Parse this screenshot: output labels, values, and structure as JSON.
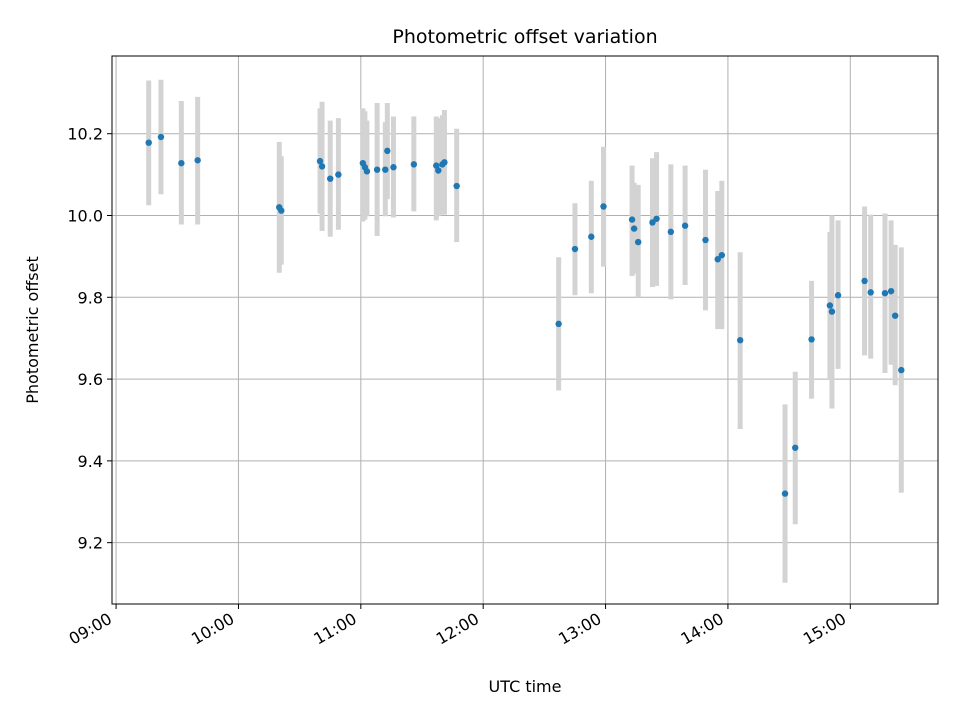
{
  "chart_data": {
    "type": "scatter",
    "title": "Photometric offset variation",
    "xlabel": "UTC time",
    "ylabel": "Photometric offset",
    "xlim": [
      "08:58",
      "15:43"
    ],
    "ylim": [
      9.05,
      10.39
    ],
    "grid": true,
    "legend": "none",
    "x_ticks": [
      "09:00",
      "10:00",
      "11:00",
      "12:00",
      "13:00",
      "14:00",
      "15:00"
    ],
    "y_ticks": [
      "9.2",
      "9.4",
      "9.6",
      "9.8",
      "10.0",
      "10.2"
    ],
    "marker_color": "#1f77b4",
    "errorbar_color": "#d3d3d3",
    "points": [
      {
        "t": "09:16",
        "y": 10.178,
        "lo": 10.025,
        "hi": 10.33
      },
      {
        "t": "09:22",
        "y": 10.192,
        "lo": 10.052,
        "hi": 10.332
      },
      {
        "t": "09:32",
        "y": 10.128,
        "lo": 9.978,
        "hi": 10.28
      },
      {
        "t": "09:40",
        "y": 10.135,
        "lo": 9.978,
        "hi": 10.29
      },
      {
        "t": "10:20",
        "y": 10.02,
        "lo": 9.86,
        "hi": 10.18
      },
      {
        "t": "10:21",
        "y": 10.012,
        "lo": 9.88,
        "hi": 10.145
      },
      {
        "t": "10:40",
        "y": 10.133,
        "lo": 10.005,
        "hi": 10.262
      },
      {
        "t": "10:41",
        "y": 10.12,
        "lo": 9.962,
        "hi": 10.278
      },
      {
        "t": "10:45",
        "y": 10.09,
        "lo": 9.948,
        "hi": 10.232
      },
      {
        "t": "10:49",
        "y": 10.1,
        "lo": 9.965,
        "hi": 10.238
      },
      {
        "t": "11:01",
        "y": 10.128,
        "lo": 9.985,
        "hi": 10.262
      },
      {
        "t": "11:02",
        "y": 10.118,
        "lo": 9.99,
        "hi": 10.255
      },
      {
        "t": "11:03",
        "y": 10.108,
        "lo": 9.998,
        "hi": 10.232
      },
      {
        "t": "11:08",
        "y": 10.112,
        "lo": 9.95,
        "hi": 10.275
      },
      {
        "t": "11:12",
        "y": 10.112,
        "lo": 9.998,
        "hi": 10.228
      },
      {
        "t": "11:13",
        "y": 10.158,
        "lo": 10.04,
        "hi": 10.275
      },
      {
        "t": "11:16",
        "y": 10.118,
        "lo": 9.995,
        "hi": 10.242
      },
      {
        "t": "11:26",
        "y": 10.125,
        "lo": 10.01,
        "hi": 10.242
      },
      {
        "t": "11:37",
        "y": 10.122,
        "lo": 9.988,
        "hi": 10.242
      },
      {
        "t": "11:38",
        "y": 10.11,
        "lo": 9.998,
        "hi": 10.238
      },
      {
        "t": "11:40",
        "y": 10.125,
        "lo": 10.002,
        "hi": 10.245
      },
      {
        "t": "11:41",
        "y": 10.13,
        "lo": 10.002,
        "hi": 10.258
      },
      {
        "t": "11:47",
        "y": 10.072,
        "lo": 9.935,
        "hi": 10.212
      },
      {
        "t": "12:37",
        "y": 9.735,
        "lo": 9.572,
        "hi": 9.898
      },
      {
        "t": "12:45",
        "y": 9.918,
        "lo": 9.805,
        "hi": 10.03
      },
      {
        "t": "12:53",
        "y": 9.948,
        "lo": 9.81,
        "hi": 10.085
      },
      {
        "t": "12:59",
        "y": 10.022,
        "lo": 9.875,
        "hi": 10.168
      },
      {
        "t": "13:13",
        "y": 9.99,
        "lo": 9.852,
        "hi": 10.122
      },
      {
        "t": "13:14",
        "y": 9.968,
        "lo": 9.858,
        "hi": 10.08
      },
      {
        "t": "13:16",
        "y": 9.935,
        "lo": 9.8,
        "hi": 10.075
      },
      {
        "t": "13:23",
        "y": 9.983,
        "lo": 9.825,
        "hi": 10.14
      },
      {
        "t": "13:25",
        "y": 9.992,
        "lo": 9.828,
        "hi": 10.155
      },
      {
        "t": "13:32",
        "y": 9.96,
        "lo": 9.795,
        "hi": 10.125
      },
      {
        "t": "13:39",
        "y": 9.975,
        "lo": 9.83,
        "hi": 10.122
      },
      {
        "t": "13:49",
        "y": 9.94,
        "lo": 9.768,
        "hi": 10.112
      },
      {
        "t": "13:55",
        "y": 9.893,
        "lo": 9.722,
        "hi": 10.06
      },
      {
        "t": "13:57",
        "y": 9.903,
        "lo": 9.722,
        "hi": 10.085
      },
      {
        "t": "14:06",
        "y": 9.695,
        "lo": 9.478,
        "hi": 9.91
      },
      {
        "t": "14:28",
        "y": 9.32,
        "lo": 9.102,
        "hi": 9.538
      },
      {
        "t": "14:33",
        "y": 9.432,
        "lo": 9.245,
        "hi": 9.618
      },
      {
        "t": "14:41",
        "y": 9.697,
        "lo": 9.552,
        "hi": 9.84
      },
      {
        "t": "14:50",
        "y": 9.78,
        "lo": 9.598,
        "hi": 9.96
      },
      {
        "t": "14:51",
        "y": 9.765,
        "lo": 9.528,
        "hi": 10.0
      },
      {
        "t": "14:54",
        "y": 9.805,
        "lo": 9.625,
        "hi": 9.988
      },
      {
        "t": "15:07",
        "y": 9.84,
        "lo": 9.658,
        "hi": 10.022
      },
      {
        "t": "15:10",
        "y": 9.812,
        "lo": 9.65,
        "hi": 10.002
      },
      {
        "t": "15:17",
        "y": 9.81,
        "lo": 9.615,
        "hi": 10.005
      },
      {
        "t": "15:20",
        "y": 9.815,
        "lo": 9.635,
        "hi": 9.988
      },
      {
        "t": "15:22",
        "y": 9.755,
        "lo": 9.585,
        "hi": 9.928
      },
      {
        "t": "15:25",
        "y": 9.622,
        "lo": 9.322,
        "hi": 9.922
      }
    ]
  }
}
